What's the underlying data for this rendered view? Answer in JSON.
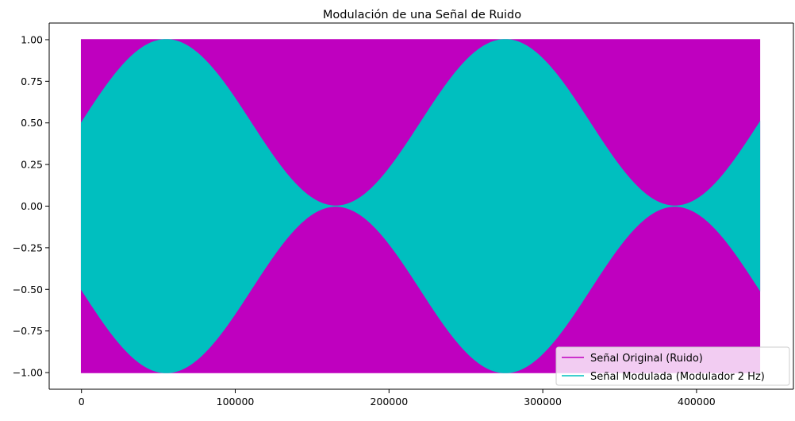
{
  "chart_data": {
    "type": "area",
    "title": "Modulación de una Señal de Ruido",
    "xlabel": "",
    "ylabel": "",
    "xlim": [
      -21000,
      463000
    ],
    "ylim": [
      -1.1,
      1.1
    ],
    "x_ticks": [
      0,
      100000,
      200000,
      300000,
      400000
    ],
    "x_tick_labels": [
      "0",
      "100000",
      "200000",
      "300000",
      "400000"
    ],
    "y_ticks": [
      1.0,
      0.75,
      0.5,
      0.25,
      0.0,
      -0.25,
      -0.5,
      -0.75,
      -1.0
    ],
    "y_tick_labels": [
      "1.00",
      "0.75",
      "0.50",
      "0.25",
      "0.00",
      "−0.25",
      "−0.50",
      "−0.75",
      "−1.00"
    ],
    "grid": false,
    "legend_position": "lower-right",
    "series": [
      {
        "name": "Señal Original (Ruido)",
        "color": "#bf00bf",
        "envelope": {
          "x": [
            0,
            441000
          ],
          "upper": [
            1.0,
            1.0
          ],
          "lower": [
            -1.0,
            -1.0
          ]
        }
      },
      {
        "name": "Señal Modulada (Modulador 2 Hz)",
        "color": "#00bfbf",
        "envelope": {
          "x": [
            0,
            55125,
            110250,
            165375,
            220500,
            275625,
            330750,
            385875,
            441000
          ],
          "upper": [
            0.5,
            1.0,
            0.5,
            0.0,
            0.5,
            1.0,
            0.5,
            0.0,
            0.5
          ],
          "lower": [
            -0.5,
            -1.0,
            -0.5,
            0.0,
            -0.5,
            -1.0,
            -0.5,
            0.0,
            -0.5
          ]
        }
      }
    ]
  }
}
